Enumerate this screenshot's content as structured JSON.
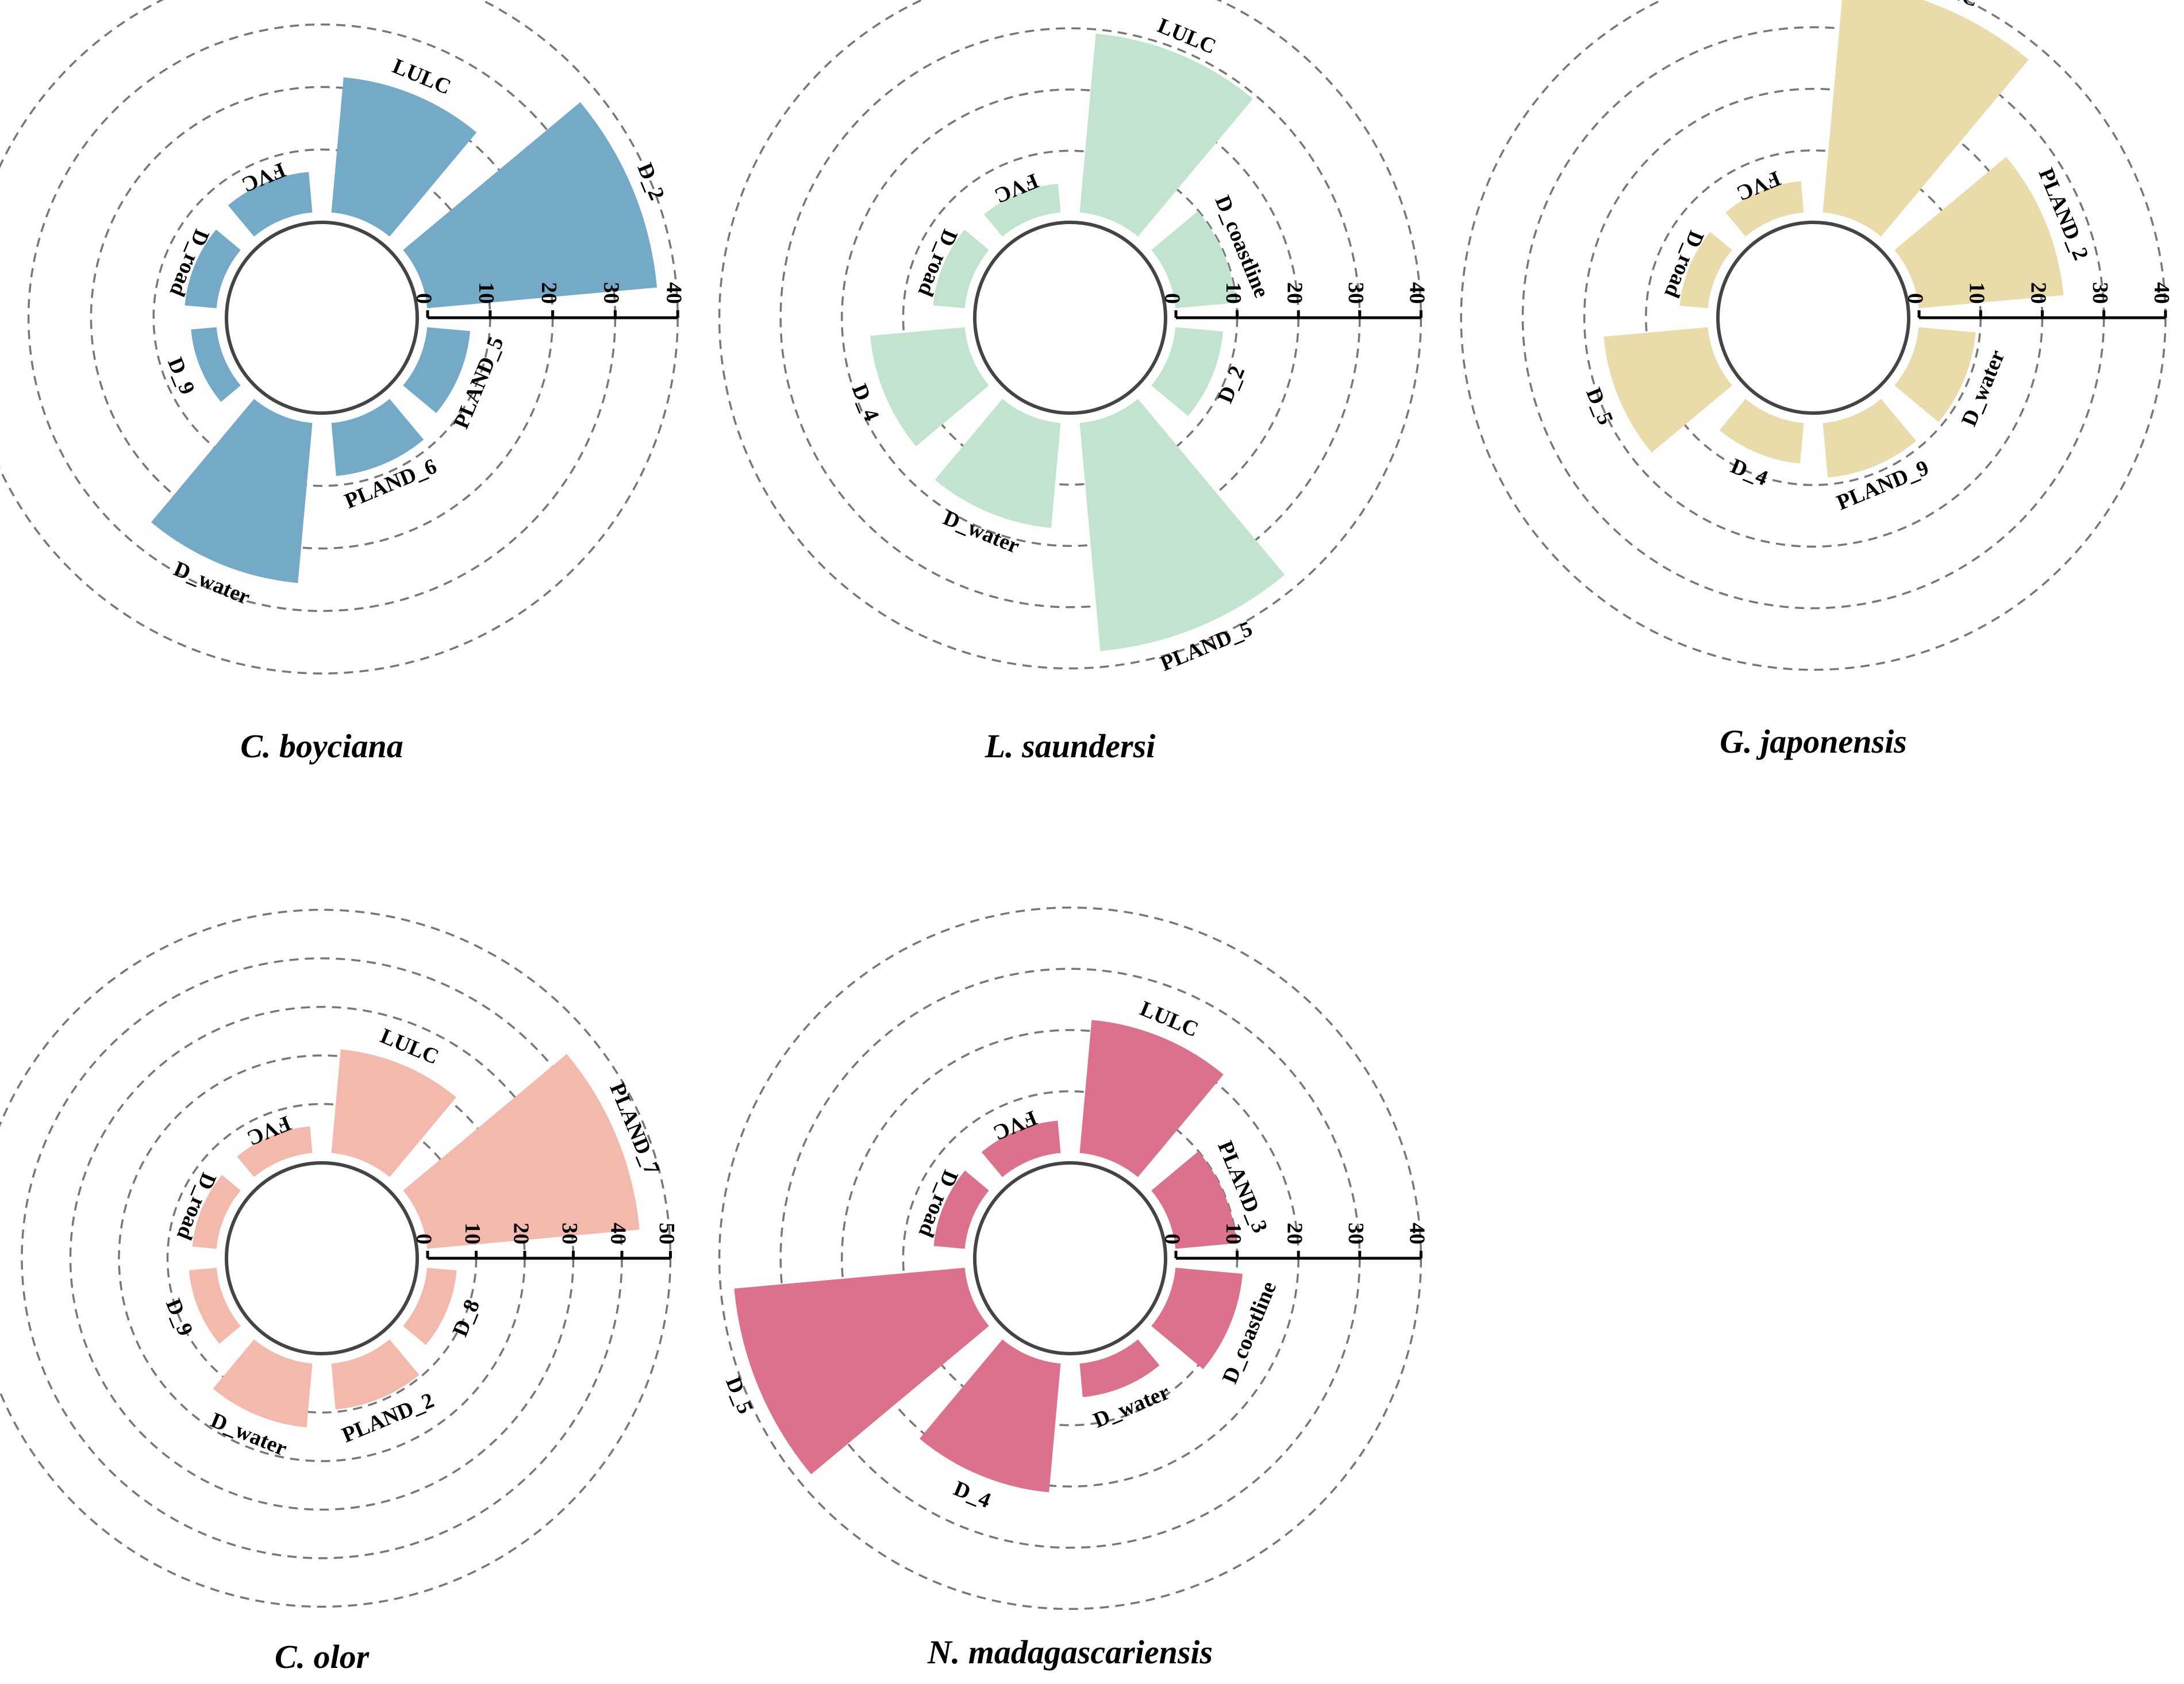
{
  "chart_data": [
    {
      "type": "polar-bar",
      "title": "C. boyciana",
      "color": "#74a9c7",
      "categories": [
        "LULC",
        "D_2",
        "PLAND_5",
        "PLAND_6",
        "D_water",
        "D_9",
        "D_road",
        "FVC"
      ],
      "values": [
        21.7,
        36.9,
        6.9,
        8.5,
        25.7,
        4.1,
        5.1,
        6.5
      ],
      "axis_ticks": [
        "0",
        "10",
        "20",
        "30",
        "40"
      ],
      "ylim": [
        0,
        40
      ],
      "grid": true
    },
    {
      "type": "polar-bar",
      "title": "L. saundersi",
      "color": "#c2e4ce",
      "categories": [
        "LULC",
        "D_coastline",
        "D_2",
        "PLAND_5",
        "D_water",
        "D_4",
        "D_road",
        "FVC"
      ],
      "values": [
        29.3,
        9.9,
        7.8,
        37.4,
        17.2,
        15.5,
        5.2,
        4.7
      ],
      "axis_ticks": [
        "0",
        "10",
        "20",
        "30",
        "40"
      ],
      "ylim": [
        0,
        40
      ],
      "grid": true
    },
    {
      "type": "polar-bar",
      "title": "G. japonensis",
      "color": "#e9dcaa",
      "categories": [
        "LULC",
        "PLAND_2",
        "D_water",
        "PLAND_9",
        "D_4",
        "D_5",
        "D_road",
        "FVC"
      ],
      "values": [
        37.4,
        23.6,
        9.3,
        8.9,
        6.6,
        17.0,
        4.6,
        5.1
      ],
      "axis_ticks": [
        "0",
        "10",
        "20",
        "30",
        "40"
      ],
      "ylim": [
        0,
        40
      ],
      "grid": true
    },
    {
      "type": "polar-bar",
      "title": "C. olor",
      "color": "#f2b9ac",
      "categories": [
        "LULC",
        "PLAND_7",
        "D_8",
        "PLAND_2",
        "D_water",
        "D_9",
        "D_road",
        "FVC"
      ],
      "values": [
        21.4,
        43.9,
        6.1,
        9.5,
        13.2,
        5.7,
        5.0,
        5.5
      ],
      "axis_ticks": [
        "0",
        "10",
        "20",
        "30",
        "40",
        "50"
      ],
      "ylim": [
        0,
        50
      ],
      "grid": true
    },
    {
      "type": "polar-bar",
      "title": "N. madagascariensis",
      "color": "#db718a",
      "categories": [
        "LULC",
        "PLAND_3",
        "D_coastline",
        "D_water",
        "D_4",
        "D_5",
        "D_road",
        "FVC"
      ],
      "values": [
        21.8,
        10.0,
        11.0,
        5.5,
        21.1,
        37.8,
        5.1,
        5.3
      ],
      "axis_ticks": [
        "0",
        "10",
        "20",
        "30",
        "40"
      ],
      "ylim": [
        0,
        40
      ],
      "grid": true
    }
  ]
}
